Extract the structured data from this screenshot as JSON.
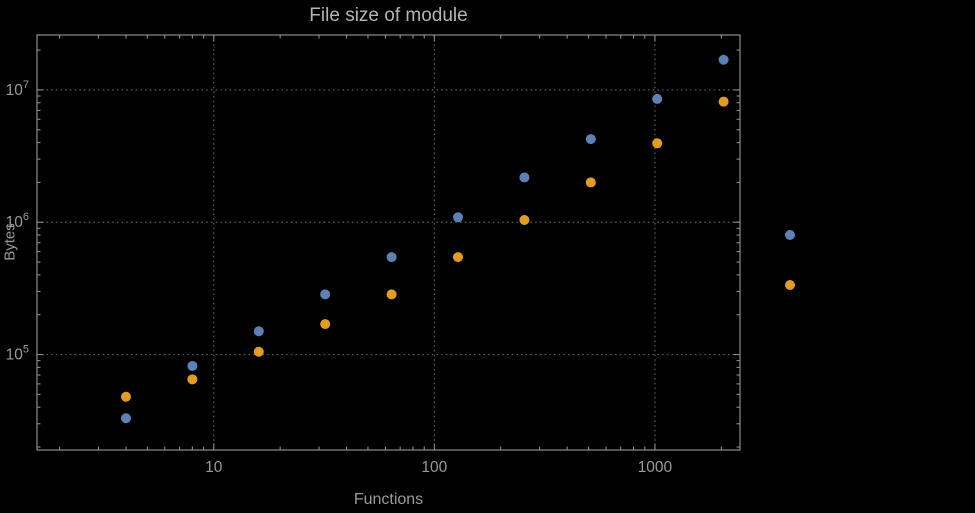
{
  "chart_data": {
    "type": "scatter",
    "title": "File size of module",
    "xlabel": "Functions",
    "ylabel": "Bytes",
    "xscale": "log",
    "yscale": "log",
    "xlim": [
      1.58,
      2430
    ],
    "ylim": [
      19000,
      26000000
    ],
    "grid": true,
    "legend_position": "right-of-plot",
    "x": [
      4,
      8,
      16,
      32,
      64,
      128,
      256,
      512,
      1024,
      2048
    ],
    "series": [
      {
        "name": "series-blue",
        "color": "#5E81B5",
        "values": [
          33000,
          82000,
          150000,
          285000,
          545000,
          1090000,
          2180000,
          4250000,
          8550000,
          16900000
        ]
      },
      {
        "name": "series-orange",
        "color": "#E19C24",
        "values": [
          48000,
          65000,
          105000,
          170000,
          285000,
          545000,
          1040000,
          2000000,
          3950000,
          8150000
        ]
      }
    ],
    "x_ticks": [
      {
        "value": 10,
        "label": "10"
      },
      {
        "value": 100,
        "label": "100"
      },
      {
        "value": 1000,
        "label": "1000"
      }
    ],
    "y_ticks": [
      {
        "value": 100000,
        "base": "10",
        "exp": "5"
      },
      {
        "value": 1000000,
        "base": "10",
        "exp": "6"
      },
      {
        "value": 10000000,
        "base": "10",
        "exp": "7"
      }
    ],
    "legend_markers": [
      {
        "name": "legend-marker-blue",
        "color": "#5E81B5"
      },
      {
        "name": "legend-marker-orange",
        "color": "#E19C24"
      }
    ]
  },
  "colors": {
    "background": "#000000",
    "frame": "#8c8c8c",
    "grid": "#5f5f5f",
    "text": "#9a9a9a",
    "title": "#b5b5b5"
  }
}
